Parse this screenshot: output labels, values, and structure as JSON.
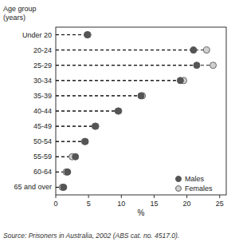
{
  "chart_data": {
    "type": "dot",
    "orientation": "horizontal",
    "categories": [
      "Under 20",
      "20-24",
      "25-29",
      "30-34",
      "35-39",
      "40-44",
      "45-49",
      "50-54",
      "55-59",
      "60-64",
      "65 and over"
    ],
    "series": [
      {
        "name": "Males",
        "color": "#555555",
        "marker": "circle",
        "values": [
          4.8,
          21.0,
          21.5,
          19.0,
          13.0,
          9.5,
          6.0,
          4.5,
          3.0,
          1.8,
          1.2
        ]
      },
      {
        "name": "Females",
        "color": "#d0d0d0",
        "marker": "circle",
        "values": [
          4.9,
          23.0,
          24.0,
          19.5,
          13.2,
          9.6,
          6.1,
          4.4,
          2.5,
          1.6,
          1.0
        ]
      }
    ],
    "xlim": [
      0,
      26
    ],
    "xticks": [
      0,
      5,
      10,
      15,
      20,
      25
    ],
    "xlabel": "%",
    "ylabel": [
      "Age group",
      "(years)"
    ],
    "source": "Source: Prisoners in Australia, 2002 (ABS cat. no. 4517.0).",
    "legend": "lower right",
    "grid": false,
    "line_style": "dashed"
  }
}
